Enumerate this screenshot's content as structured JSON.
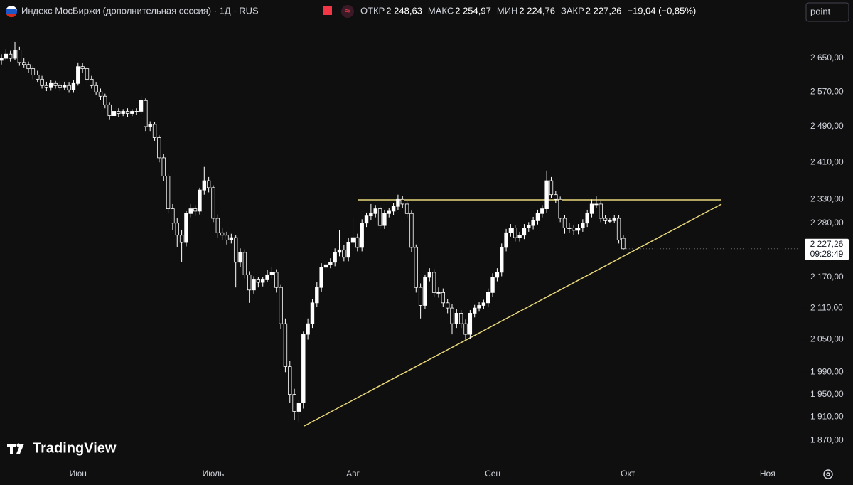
{
  "chart_data": {
    "type": "candlestick",
    "title": "Индекс МосБиржи (дополнительная сессия) · 1Д · RUS",
    "info": [
      {
        "label": "ОТКР",
        "value": "2 248,63"
      },
      {
        "label": "МАКС",
        "value": "2 254,97"
      },
      {
        "label": "МИН",
        "value": "2 224,76"
      },
      {
        "label": "ЗАКР",
        "value": "2 227,26"
      }
    ],
    "change": "−19,04 (−0,85%)",
    "last_price_label": "2 227,26",
    "countdown": "09:28:49",
    "button": "point",
    "watermark": "TradingView",
    "log_scale": true,
    "up_color": "#ffffff",
    "down_color": "#0f0f0f",
    "wick_color": "#ffffff",
    "line_color": "#e8d77a",
    "ylim": [
      1827,
      2741
    ],
    "yticks": [
      {
        "value": 1870,
        "label": "1 870,00"
      },
      {
        "value": 1910,
        "label": "1 910,00"
      },
      {
        "value": 1950,
        "label": "1 950,00"
      },
      {
        "value": 1990,
        "label": "1 990,00"
      },
      {
        "value": 2050,
        "label": "2 050,00"
      },
      {
        "value": 2110,
        "label": "2 110,00"
      },
      {
        "value": 2170,
        "label": "2 170,00"
      },
      {
        "value": 2280,
        "label": "2 280,00"
      },
      {
        "value": 2330,
        "label": "2 330,00"
      },
      {
        "value": 2410,
        "label": "2 410,00"
      },
      {
        "value": 2490,
        "label": "2 490,00"
      },
      {
        "value": 2570,
        "label": "2 570,00"
      },
      {
        "value": 2650,
        "label": "2 650,00"
      }
    ],
    "xticks": [
      {
        "value": 17,
        "label": "Июн"
      },
      {
        "value": 47,
        "label": "Июль"
      },
      {
        "value": 78,
        "label": "Авг"
      },
      {
        "value": 109,
        "label": "Сен"
      },
      {
        "value": 139,
        "label": "Окт"
      },
      {
        "value": 170,
        "label": "Ноя"
      }
    ],
    "open": [
      2645,
      2650,
      2660,
      2650,
      2670,
      2640,
      2635,
      2625,
      2610,
      2600,
      2585,
      2580,
      2590,
      2585,
      2580,
      2585,
      2575,
      2590,
      2630,
      2625,
      2600,
      2585,
      2570,
      2560,
      2540,
      2515,
      2525,
      2520,
      2525,
      2520,
      2525,
      2525,
      2550,
      2490,
      2495,
      2465,
      2420,
      2380,
      2310,
      2280,
      2255,
      2240,
      2300,
      2310,
      2305,
      2350,
      2370,
      2355,
      2290,
      2260,
      2255,
      2245,
      2250,
      2200,
      2220,
      2175,
      2145,
      2165,
      2160,
      2165,
      2175,
      2180,
      2150,
      2080,
      2000,
      1950,
      1920,
      1935,
      2060,
      2080,
      2120,
      2150,
      2190,
      2195,
      2200,
      2220,
      2225,
      2210,
      2240,
      2250,
      2230,
      2280,
      2295,
      2300,
      2310,
      2275,
      2300,
      2305,
      2315,
      2330,
      2320,
      2300,
      2230,
      2150,
      2115,
      2170,
      2180,
      2140,
      2140,
      2120,
      2110,
      2080,
      2100,
      2080,
      2060,
      2100,
      2110,
      2115,
      2120,
      2140,
      2170,
      2180,
      2230,
      2260,
      2270,
      2250,
      2255,
      2270,
      2275,
      2285,
      2300,
      2310,
      2370,
      2340,
      2330,
      2290,
      2270,
      2270,
      2265,
      2270,
      2280,
      2300,
      2320,
      2320,
      2290,
      2285,
      2285,
      2290,
      2248.63
    ],
    "high": [
      2660,
      2672,
      2668,
      2690,
      2678,
      2650,
      2642,
      2632,
      2620,
      2608,
      2594,
      2598,
      2596,
      2592,
      2594,
      2592,
      2598,
      2640,
      2638,
      2630,
      2608,
      2592,
      2578,
      2566,
      2545,
      2530,
      2532,
      2530,
      2532,
      2530,
      2532,
      2560,
      2555,
      2502,
      2500,
      2470,
      2428,
      2385,
      2320,
      2290,
      2265,
      2305,
      2320,
      2318,
      2355,
      2400,
      2378,
      2360,
      2298,
      2270,
      2262,
      2258,
      2256,
      2228,
      2226,
      2182,
      2172,
      2170,
      2170,
      2185,
      2190,
      2186,
      2155,
      2090,
      2010,
      1960,
      1940,
      2065,
      2090,
      2128,
      2160,
      2198,
      2203,
      2208,
      2228,
      2265,
      2235,
      2250,
      2290,
      2258,
      2288,
      2302,
      2320,
      2318,
      2316,
      2308,
      2312,
      2322,
      2340,
      2338,
      2326,
      2306,
      2236,
      2158,
      2175,
      2188,
      2186,
      2150,
      2148,
      2128,
      2118,
      2108,
      2106,
      2088,
      2106,
      2116,
      2122,
      2126,
      2148,
      2178,
      2188,
      2238,
      2268,
      2278,
      2276,
      2262,
      2278,
      2282,
      2293,
      2308,
      2318,
      2392,
      2378,
      2348,
      2336,
      2296,
      2280,
      2276,
      2278,
      2288,
      2308,
      2330,
      2338,
      2326,
      2296,
      2290,
      2296,
      2296,
      2254.97
    ],
    "low": [
      2635,
      2645,
      2642,
      2645,
      2632,
      2628,
      2615,
      2600,
      2592,
      2578,
      2572,
      2573,
      2578,
      2572,
      2574,
      2568,
      2568,
      2585,
      2615,
      2594,
      2578,
      2562,
      2552,
      2532,
      2505,
      2508,
      2512,
      2514,
      2512,
      2514,
      2516,
      2518,
      2480,
      2480,
      2458,
      2410,
      2370,
      2300,
      2265,
      2230,
      2200,
      2232,
      2292,
      2295,
      2298,
      2340,
      2345,
      2282,
      2250,
      2245,
      2236,
      2238,
      2150,
      2190,
      2168,
      2120,
      2138,
      2150,
      2152,
      2160,
      2168,
      2140,
      2070,
      1990,
      1935,
      1905,
      1902,
      1925,
      2050,
      2072,
      2112,
      2142,
      2182,
      2188,
      2192,
      2212,
      2202,
      2202,
      2232,
      2222,
      2222,
      2272,
      2287,
      2292,
      2268,
      2268,
      2292,
      2297,
      2307,
      2312,
      2292,
      2220,
      2140,
      2090,
      2108,
      2162,
      2132,
      2130,
      2112,
      2100,
      2060,
      2072,
      2072,
      2050,
      2052,
      2092,
      2103,
      2108,
      2112,
      2132,
      2162,
      2172,
      2222,
      2252,
      2242,
      2242,
      2247,
      2262,
      2267,
      2277,
      2292,
      2302,
      2332,
      2322,
      2282,
      2258,
      2260,
      2255,
      2257,
      2262,
      2272,
      2292,
      2312,
      2282,
      2278,
      2280,
      2280,
      2238,
      2224.76
    ],
    "close": [
      2650,
      2660,
      2650,
      2670,
      2640,
      2635,
      2625,
      2610,
      2600,
      2585,
      2580,
      2590,
      2585,
      2580,
      2585,
      2575,
      2590,
      2630,
      2625,
      2600,
      2585,
      2570,
      2560,
      2540,
      2515,
      2525,
      2520,
      2525,
      2520,
      2525,
      2525,
      2550,
      2490,
      2495,
      2465,
      2420,
      2380,
      2310,
      2280,
      2255,
      2240,
      2300,
      2310,
      2305,
      2350,
      2370,
      2355,
      2290,
      2260,
      2255,
      2245,
      2250,
      2200,
      2220,
      2175,
      2145,
      2165,
      2160,
      2165,
      2175,
      2180,
      2150,
      2080,
      2000,
      1950,
      1920,
      1935,
      2060,
      2080,
      2120,
      2150,
      2190,
      2195,
      2200,
      2220,
      2225,
      2210,
      2240,
      2250,
      2230,
      2280,
      2295,
      2300,
      2310,
      2275,
      2300,
      2305,
      2315,
      2330,
      2320,
      2300,
      2230,
      2150,
      2115,
      2170,
      2180,
      2140,
      2140,
      2120,
      2110,
      2080,
      2100,
      2080,
      2060,
      2100,
      2110,
      2115,
      2120,
      2140,
      2170,
      2180,
      2230,
      2260,
      2270,
      2250,
      2255,
      2270,
      2275,
      2285,
      2300,
      2310,
      2370,
      2340,
      2330,
      2290,
      2270,
      2270,
      2265,
      2270,
      2280,
      2300,
      2320,
      2320,
      2290,
      2285,
      2285,
      2290,
      2245,
      2227.26
    ]
  }
}
